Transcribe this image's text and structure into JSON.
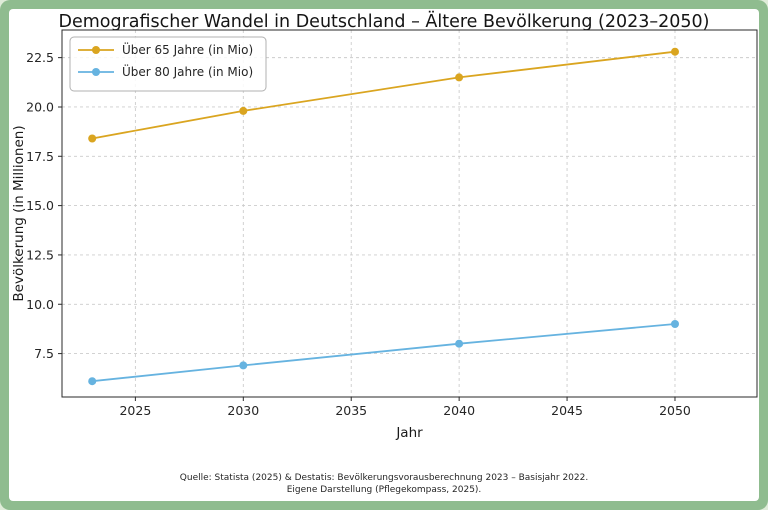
{
  "colors": {
    "frame_green": "#8fbc8f",
    "figure_background": "#ffffff",
    "grid": "#cccccc",
    "over65_line": "#DAA520",
    "over80_line": "#66b3e0"
  },
  "chart_data": {
    "type": "line",
    "title": "Demografischer Wandel in Deutschland – Ältere Bevölkerung (2023–2050)",
    "xlabel": "Jahr",
    "ylabel": "Bevölkerung (in Millionen)",
    "x": [
      2023,
      2030,
      2040,
      2050
    ],
    "series": [
      {
        "name": "Über 65 Jahre (in Mio)",
        "color": "#DAA520",
        "values": [
          18.4,
          19.8,
          21.5,
          22.8
        ]
      },
      {
        "name": "Über 80 Jahre (in Mio)",
        "color": "#66b3e0",
        "values": [
          6.1,
          6.9,
          8.0,
          9.0
        ]
      }
    ],
    "xlim": [
      2021.6,
      2053.8
    ],
    "ylim": [
      5.3,
      23.9
    ],
    "xticks": [
      2025,
      2030,
      2035,
      2040,
      2045,
      2050
    ],
    "yticks": [
      7.5,
      10.0,
      12.5,
      15.0,
      17.5,
      20.0,
      22.5
    ],
    "grid": true,
    "grid_style": "dashed",
    "legend_position": "upper-left"
  },
  "footer": {
    "line1": "Quelle: Statista (2025) & Destatis: Bevölkerungsvorausberechnung 2023 – Basisjahr 2022.",
    "line2": "Eigene Darstellung (Pflegekompass, 2025)."
  }
}
